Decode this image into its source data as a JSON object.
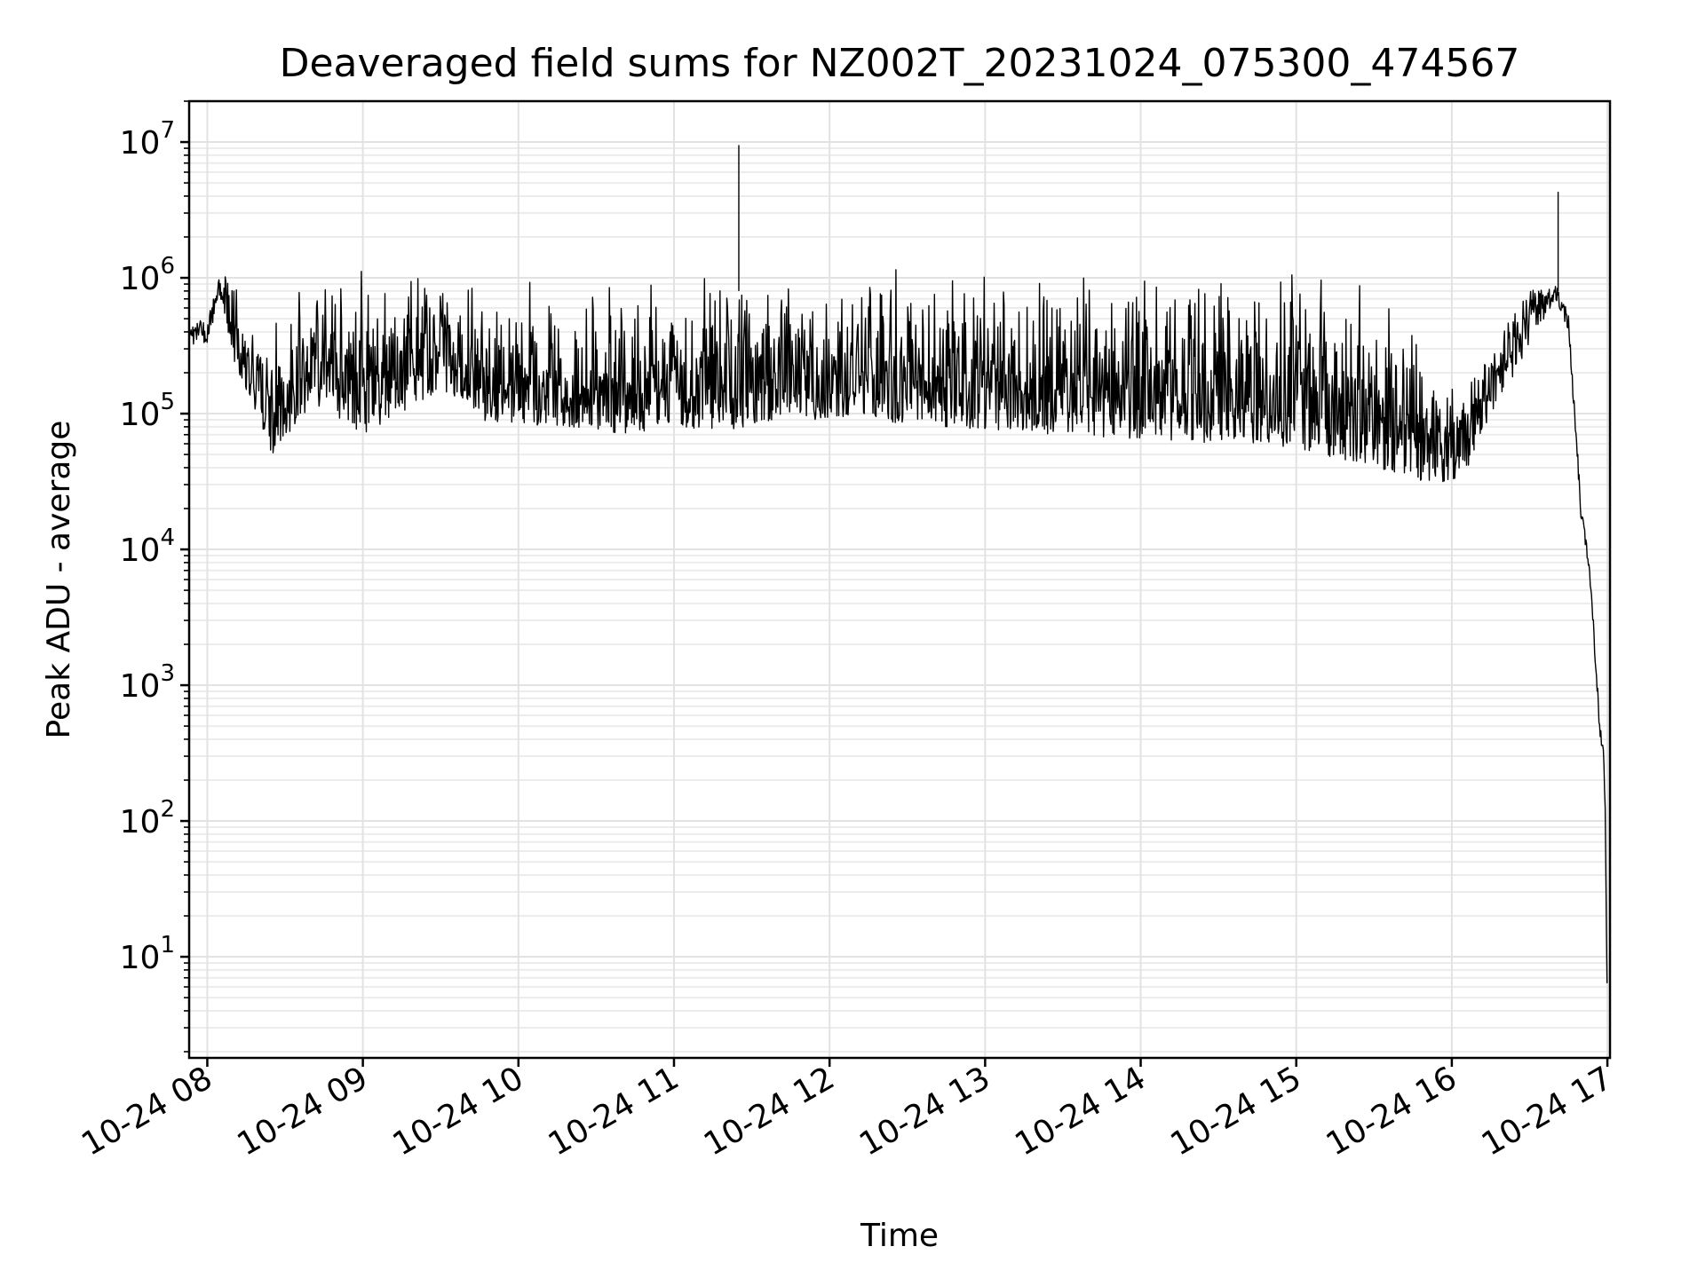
{
  "chart_data": {
    "type": "line",
    "title": "Deaveraged field sums for NZ002T_20231024_075300_474567",
    "xlabel": "Time",
    "ylabel": "Peak ADU - average",
    "y_scale": "log",
    "ylim": [
      1.8,
      20000000
    ],
    "xlim": [
      "2023-10-24 07:53",
      "2023-10-24 17:01"
    ],
    "grid": true,
    "x_ticks": [
      "10-24 08",
      "10-24 09",
      "10-24 10",
      "10-24 11",
      "10-24 12",
      "10-24 13",
      "10-24 14",
      "10-24 15",
      "10-24 16",
      "10-24 17"
    ],
    "x_tick_values": [
      "2023-10-24 08:00",
      "2023-10-24 09:00",
      "2023-10-24 10:00",
      "2023-10-24 11:00",
      "2023-10-24 12:00",
      "2023-10-24 13:00",
      "2023-10-24 14:00",
      "2023-10-24 15:00",
      "2023-10-24 16:00",
      "2023-10-24 17:00"
    ],
    "y_ticks": [
      {
        "base": "10",
        "exp": "1",
        "value": 10
      },
      {
        "base": "10",
        "exp": "2",
        "value": 100
      },
      {
        "base": "10",
        "exp": "3",
        "value": 1000
      },
      {
        "base": "10",
        "exp": "4",
        "value": 10000
      },
      {
        "base": "10",
        "exp": "5",
        "value": 100000
      },
      {
        "base": "10",
        "exp": "6",
        "value": 1000000
      },
      {
        "base": "10",
        "exp": "7",
        "value": 10000000
      }
    ],
    "series": [
      {
        "color": "#000000",
        "points": [
          {
            "time": "2023-10-24 07:53",
            "lower": 320000,
            "upper": 480000
          },
          {
            "time": "2023-10-24 08:00",
            "lower": 330000,
            "upper": 500000
          },
          {
            "time": "2023-10-24 08:05",
            "lower": 700000,
            "upper": 1100000
          },
          {
            "time": "2023-10-24 08:10",
            "lower": 250000,
            "upper": 900000
          },
          {
            "time": "2023-10-24 08:15",
            "lower": 150000,
            "upper": 800000
          },
          {
            "time": "2023-10-24 08:20",
            "lower": 80000,
            "upper": 780000
          },
          {
            "time": "2023-10-24 08:25",
            "lower": 50000,
            "upper": 700000
          },
          {
            "time": "2023-10-24 08:30",
            "lower": 60000,
            "upper": 900000
          },
          {
            "time": "2023-10-24 08:40",
            "lower": 120000,
            "upper": 1000000
          },
          {
            "time": "2023-10-24 08:50",
            "lower": 90000,
            "upper": 1300000
          },
          {
            "time": "2023-10-24 09:00",
            "lower": 70000,
            "upper": 1450000
          },
          {
            "time": "2023-10-24 09:15",
            "lower": 100000,
            "upper": 1200000
          },
          {
            "time": "2023-10-24 09:30",
            "lower": 150000,
            "upper": 1000000
          },
          {
            "time": "2023-10-24 09:45",
            "lower": 90000,
            "upper": 1000000
          },
          {
            "time": "2023-10-24 10:00",
            "lower": 80000,
            "upper": 1200000
          },
          {
            "time": "2023-10-24 10:20",
            "lower": 80000,
            "upper": 1150000
          },
          {
            "time": "2023-10-24 10:40",
            "lower": 70000,
            "upper": 1200000
          },
          {
            "time": "2023-10-24 11:00",
            "lower": 80000,
            "upper": 1200000
          },
          {
            "time": "2023-10-24 11:20",
            "lower": 75000,
            "upper": 1300000
          },
          {
            "time": "2023-10-24 11:40",
            "lower": 90000,
            "upper": 1100000
          },
          {
            "time": "2023-10-24 12:00",
            "lower": 90000,
            "upper": 1100000
          },
          {
            "time": "2023-10-24 12:30",
            "lower": 85000,
            "upper": 1300000
          },
          {
            "time": "2023-10-24 13:00",
            "lower": 75000,
            "upper": 1250000
          },
          {
            "time": "2023-10-24 13:30",
            "lower": 70000,
            "upper": 1300000
          },
          {
            "time": "2023-10-24 14:00",
            "lower": 65000,
            "upper": 1250000
          },
          {
            "time": "2023-10-24 14:30",
            "lower": 60000,
            "upper": 1300000
          },
          {
            "time": "2023-10-24 15:00",
            "lower": 55000,
            "upper": 1400000
          },
          {
            "time": "2023-10-24 15:20",
            "lower": 45000,
            "upper": 1100000
          },
          {
            "time": "2023-10-24 15:40",
            "lower": 35000,
            "upper": 700000
          },
          {
            "time": "2023-10-24 15:55",
            "lower": 30000,
            "upper": 200000
          },
          {
            "time": "2023-10-24 16:05",
            "lower": 35000,
            "upper": 150000
          },
          {
            "time": "2023-10-24 16:15",
            "lower": 100000,
            "upper": 300000
          },
          {
            "time": "2023-10-24 16:30",
            "lower": 300000,
            "upper": 800000
          },
          {
            "time": "2023-10-24 16:40",
            "lower": 700000,
            "upper": 900000
          },
          {
            "time": "2023-10-24 16:45",
            "lower": 400000,
            "upper": 600000
          },
          {
            "time": "2023-10-24 16:50",
            "lower": 15000,
            "upper": 20000
          },
          {
            "time": "2023-10-24 16:53",
            "lower": 7000,
            "upper": 9000
          },
          {
            "time": "2023-10-24 16:56",
            "lower": 800,
            "upper": 1200
          },
          {
            "time": "2023-10-24 16:59",
            "lower": 150,
            "upper": 250
          },
          {
            "time": "2023-10-24 17:00",
            "lower": 3.7,
            "upper": 5
          }
        ],
        "spikes": [
          {
            "time": "2023-10-24 11:25",
            "value": 9500000
          },
          {
            "time": "2023-10-24 16:41",
            "value": 4300000
          }
        ]
      }
    ]
  }
}
